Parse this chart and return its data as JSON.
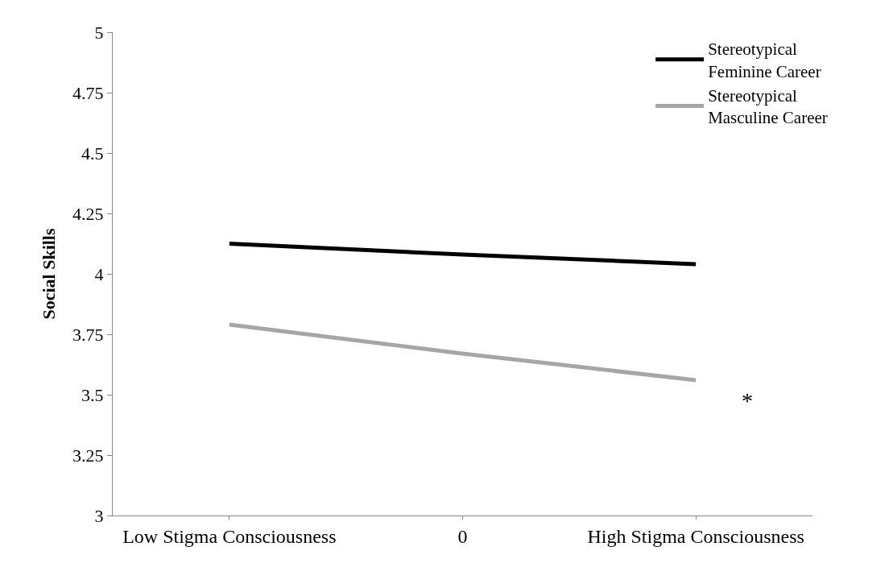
{
  "chart_data": {
    "type": "line",
    "ylabel": "Social Skills",
    "categories": [
      "Low Stigma Consciousness",
      "0",
      "High Stigma Consciousness"
    ],
    "series": [
      {
        "name": "Stereotypical Feminine Career",
        "color": "#000000",
        "values": [
          4.125,
          4.08,
          4.04
        ]
      },
      {
        "name": "Stereotypical Masculine Career",
        "color": "#a6a6a6",
        "values": [
          3.79,
          3.67,
          3.56
        ]
      }
    ],
    "ylim": [
      3,
      5
    ],
    "yticks": [
      3,
      3.25,
      3.5,
      3.75,
      4,
      4.25,
      4.5,
      4.75,
      5
    ],
    "annotations": [
      "*"
    ],
    "legend": "top right",
    "marker": "none",
    "line_style": "solid"
  }
}
